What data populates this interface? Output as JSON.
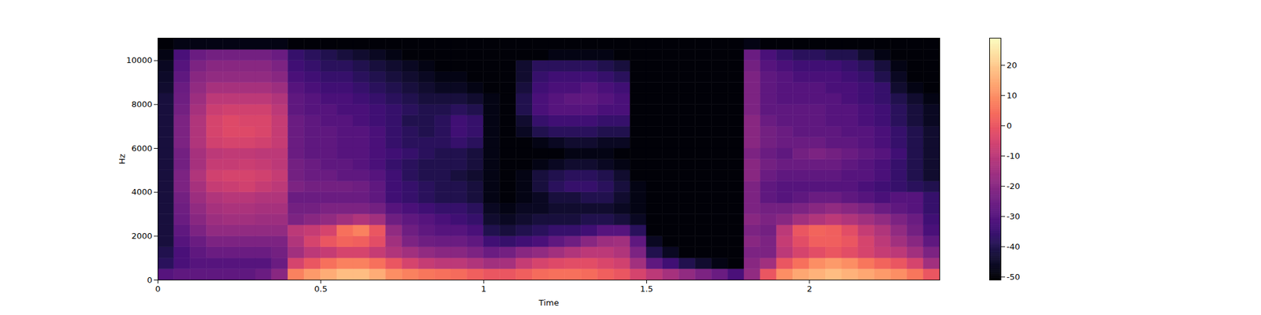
{
  "chart_data": {
    "type": "heatmap",
    "x_label": "Time",
    "y_label": "Hz",
    "xlim": [
      0,
      2.4
    ],
    "xticks": [
      0,
      0.5,
      1,
      1.5,
      2
    ],
    "ylim": [
      0,
      11025
    ],
    "yticks": [
      0,
      2000,
      4000,
      6000,
      8000,
      10000
    ],
    "time_edges": [
      0,
      0.05,
      0.1,
      0.15,
      0.2,
      0.25,
      0.3,
      0.35,
      0.4,
      0.45,
      0.5,
      0.55,
      0.6,
      0.65,
      0.7,
      0.75,
      0.8,
      0.85,
      0.9,
      0.95,
      1,
      1.05,
      1.1,
      1.15,
      1.2,
      1.25,
      1.3,
      1.35,
      1.4,
      1.45,
      1.5,
      1.55,
      1.6,
      1.65,
      1.7,
      1.75,
      1.8,
      1.85,
      1.9,
      1.95,
      2,
      2.05,
      2.1,
      2.15,
      2.2,
      2.25,
      2.3,
      2.35,
      2.4
    ],
    "freq_edges": [
      0,
      500,
      1000,
      1500,
      2000,
      2500,
      3000,
      3500,
      4000,
      4500,
      5000,
      5500,
      6000,
      6500,
      7000,
      7500,
      8000,
      8500,
      9000,
      9500,
      10000,
      10500,
      11025
    ],
    "cells": [
      [
        -30,
        -38,
        -40,
        -42,
        -42,
        -42,
        -42,
        -42,
        -42,
        -42,
        -42,
        -42,
        -42,
        -42,
        -42,
        -42,
        -42,
        -44,
        -45,
        -46,
        -48,
        -50
      ],
      [
        -28,
        -32,
        -32,
        -30,
        -28,
        -26,
        -25,
        -24,
        -22,
        -22,
        -24,
        -24,
        -22,
        -22,
        -22,
        -24,
        -25,
        -26,
        -28,
        -30,
        -32,
        -48
      ],
      [
        -28,
        -30,
        -28,
        -26,
        -22,
        -20,
        -18,
        -16,
        -14,
        -12,
        -14,
        -14,
        -12,
        -12,
        -12,
        -14,
        -16,
        -18,
        -20,
        -22,
        -26,
        -48
      ],
      [
        -28,
        -30,
        -26,
        -22,
        -18,
        -16,
        -14,
        -12,
        -8,
        -6,
        -8,
        -10,
        -6,
        -5,
        -5,
        -7,
        -10,
        -14,
        -18,
        -20,
        -24,
        -48
      ],
      [
        -28,
        -30,
        -26,
        -22,
        -18,
        -15,
        -13,
        -11,
        -7,
        -5,
        -8,
        -9,
        -5,
        -3,
        -3,
        -6,
        -10,
        -14,
        -18,
        -20,
        -24,
        -48
      ],
      [
        -28,
        -30,
        -26,
        -22,
        -18,
        -15,
        -13,
        -11,
        -6,
        -5,
        -7,
        -9,
        -5,
        -3,
        -4,
        -6,
        -10,
        -14,
        -18,
        -20,
        -24,
        -48
      ],
      [
        -26,
        -30,
        -26,
        -22,
        -18,
        -16,
        -14,
        -12,
        -8,
        -6,
        -8,
        -10,
        -6,
        -4,
        -4,
        -6,
        -10,
        -14,
        -18,
        -20,
        -24,
        -48
      ],
      [
        -20,
        -26,
        -24,
        -22,
        -18,
        -16,
        -14,
        -12,
        -10,
        -8,
        -10,
        -10,
        -8,
        -8,
        -8,
        -10,
        -12,
        -16,
        -20,
        -22,
        -26,
        -48
      ],
      [
        8,
        -5,
        -15,
        -12,
        -10,
        -22,
        -24,
        -26,
        -22,
        -24,
        -24,
        -26,
        -26,
        -26,
        -26,
        -28,
        -28,
        -30,
        -32,
        -34,
        -36,
        -50
      ],
      [
        12,
        0,
        -10,
        -5,
        -8,
        -20,
        -24,
        -26,
        -24,
        -26,
        -26,
        -28,
        -28,
        -28,
        -28,
        -30,
        -30,
        -32,
        -34,
        -36,
        -38,
        -50
      ],
      [
        15,
        5,
        -8,
        0,
        -5,
        -18,
        -22,
        -26,
        -24,
        -26,
        -28,
        -28,
        -28,
        -28,
        -30,
        -30,
        -32,
        -34,
        -36,
        -38,
        -40,
        -50
      ],
      [
        18,
        8,
        -5,
        3,
        5,
        -15,
        -22,
        -26,
        -24,
        -28,
        -28,
        -30,
        -30,
        -30,
        -30,
        -32,
        -32,
        -34,
        -36,
        -38,
        -42,
        -50
      ],
      [
        18,
        8,
        -5,
        2,
        8,
        -12,
        -22,
        -26,
        -25,
        -28,
        -30,
        -30,
        -30,
        -30,
        -32,
        -32,
        -34,
        -36,
        -38,
        -40,
        -44,
        -50
      ],
      [
        15,
        5,
        -8,
        -2,
        0,
        -15,
        -24,
        -28,
        -28,
        -30,
        -32,
        -32,
        -32,
        -32,
        -34,
        -34,
        -36,
        -38,
        -40,
        -42,
        -46,
        -50
      ],
      [
        10,
        0,
        -12,
        -15,
        -18,
        -25,
        -30,
        -34,
        -34,
        -34,
        -36,
        -34,
        -36,
        -36,
        -36,
        -36,
        -38,
        -40,
        -42,
        -44,
        -48,
        -50
      ],
      [
        8,
        -5,
        -15,
        -22,
        -25,
        -28,
        -32,
        -36,
        -36,
        -38,
        -38,
        -36,
        -38,
        -38,
        -40,
        -38,
        -40,
        -42,
        -44,
        -46,
        -50,
        -50
      ],
      [
        6,
        -8,
        -18,
        -25,
        -28,
        -30,
        -34,
        -38,
        -38,
        -40,
        -40,
        -38,
        -38,
        -40,
        -40,
        -40,
        -42,
        -44,
        -46,
        -48,
        -50,
        -50
      ],
      [
        5,
        -10,
        -20,
        -26,
        -30,
        -32,
        -36,
        -40,
        -40,
        -40,
        -40,
        -40,
        -38,
        -38,
        -38,
        -40,
        -42,
        -46,
        -48,
        -50,
        -50,
        -50
      ],
      [
        4,
        -10,
        -20,
        -26,
        -30,
        -34,
        -36,
        -40,
        -40,
        -42,
        -40,
        -40,
        -36,
        -34,
        -34,
        -38,
        -42,
        -46,
        -48,
        -50,
        -50,
        -50
      ],
      [
        2,
        -12,
        -22,
        -28,
        -32,
        -36,
        -38,
        -42,
        -42,
        -44,
        -42,
        -42,
        -38,
        -36,
        -36,
        -40,
        -44,
        -48,
        -50,
        -50,
        -50,
        -50
      ],
      [
        0,
        -15,
        -26,
        -34,
        -40,
        -44,
        -46,
        -48,
        -48,
        -48,
        -48,
        -48,
        -48,
        -48,
        -48,
        -48,
        -48,
        -50,
        -50,
        -50,
        -50,
        -50
      ],
      [
        0,
        -14,
        -24,
        -36,
        -42,
        -46,
        -48,
        -50,
        -50,
        -50,
        -50,
        -50,
        -50,
        -50,
        -50,
        -50,
        -50,
        -50,
        -50,
        -50,
        -50,
        -50
      ],
      [
        2,
        -8,
        -20,
        -34,
        -40,
        -44,
        -46,
        -48,
        -48,
        -48,
        -50,
        -50,
        -50,
        -46,
        -44,
        -40,
        -40,
        -42,
        -44,
        -44,
        -50,
        -50
      ],
      [
        4,
        -5,
        -18,
        -32,
        -38,
        -42,
        -46,
        -46,
        -42,
        -42,
        -48,
        -50,
        -48,
        -40,
        -36,
        -32,
        -32,
        -34,
        -36,
        -38,
        -50,
        -50
      ],
      [
        5,
        -3,
        -15,
        -28,
        -36,
        -42,
        -44,
        -42,
        -38,
        -40,
        -46,
        -50,
        -46,
        -38,
        -34,
        -30,
        -30,
        -32,
        -34,
        -38,
        -48,
        -50
      ],
      [
        5,
        -2,
        -12,
        -25,
        -36,
        -42,
        -44,
        -42,
        -36,
        -38,
        -44,
        -48,
        -44,
        -38,
        -34,
        -30,
        -28,
        -32,
        -34,
        -38,
        -48,
        -50
      ],
      [
        4,
        -2,
        -10,
        -20,
        -34,
        -40,
        -44,
        -40,
        -36,
        -38,
        -44,
        -48,
        -44,
        -38,
        -34,
        -30,
        -28,
        -30,
        -34,
        -38,
        -48,
        -50
      ],
      [
        2,
        -4,
        -10,
        -16,
        -30,
        -40,
        -44,
        -40,
        -38,
        -40,
        -46,
        -48,
        -46,
        -40,
        -36,
        -32,
        -30,
        -32,
        -36,
        -40,
        -48,
        -50
      ],
      [
        0,
        -6,
        -12,
        -15,
        -30,
        -42,
        -46,
        -44,
        -42,
        -44,
        -48,
        -50,
        -46,
        -40,
        -36,
        -32,
        -32,
        -34,
        -38,
        -42,
        -50,
        -50
      ],
      [
        -5,
        -15,
        -22,
        -28,
        -38,
        -46,
        -48,
        -48,
        -48,
        -50,
        -50,
        -50,
        -50,
        -50,
        -50,
        -50,
        -50,
        -50,
        -50,
        -50,
        -50,
        -50
      ],
      [
        -10,
        -28,
        -40,
        -46,
        -50,
        -50,
        -50,
        -50,
        -50,
        -50,
        -50,
        -50,
        -50,
        -50,
        -50,
        -50,
        -50,
        -50,
        -50,
        -50,
        -50,
        -50
      ],
      [
        -14,
        -34,
        -46,
        -50,
        -50,
        -50,
        -50,
        -50,
        -50,
        -50,
        -50,
        -50,
        -50,
        -50,
        -50,
        -50,
        -50,
        -50,
        -50,
        -50,
        -50,
        -50
      ],
      [
        -18,
        -40,
        -50,
        -50,
        -50,
        -50,
        -50,
        -50,
        -50,
        -50,
        -50,
        -50,
        -50,
        -50,
        -50,
        -50,
        -50,
        -50,
        -50,
        -50,
        -50,
        -50
      ],
      [
        -22,
        -44,
        -50,
        -50,
        -50,
        -50,
        -50,
        -50,
        -50,
        -50,
        -50,
        -50,
        -50,
        -50,
        -50,
        -50,
        -50,
        -50,
        -50,
        -50,
        -50,
        -50
      ],
      [
        -26,
        -48,
        -50,
        -50,
        -50,
        -50,
        -50,
        -50,
        -50,
        -50,
        -50,
        -50,
        -50,
        -50,
        -50,
        -50,
        -50,
        -50,
        -50,
        -50,
        -50,
        -50
      ],
      [
        -32,
        -50,
        -50,
        -50,
        -50,
        -50,
        -50,
        -50,
        -50,
        -50,
        -50,
        -50,
        -50,
        -50,
        -50,
        -50,
        -50,
        -50,
        -50,
        -50,
        -50,
        -50
      ],
      [
        -18,
        -20,
        -22,
        -20,
        -22,
        -20,
        -22,
        -22,
        -22,
        -20,
        -20,
        -22,
        -20,
        -20,
        -20,
        -22,
        -22,
        -22,
        -22,
        -24,
        -26,
        -48
      ],
      [
        0,
        -15,
        -22,
        -22,
        -24,
        -22,
        -24,
        -28,
        -28,
        -26,
        -24,
        -26,
        -24,
        -24,
        -26,
        -28,
        -28,
        -28,
        -28,
        -30,
        -32,
        -50
      ],
      [
        10,
        0,
        -10,
        -8,
        -10,
        -20,
        -24,
        -30,
        -30,
        -28,
        -26,
        -28,
        -26,
        -26,
        -28,
        -28,
        -30,
        -30,
        -30,
        -32,
        -36,
        -50
      ],
      [
        14,
        5,
        -5,
        -2,
        0,
        -15,
        -22,
        -28,
        -30,
        -28,
        -26,
        -24,
        -26,
        -28,
        -28,
        -28,
        -30,
        -30,
        -32,
        -34,
        -38,
        -50
      ],
      [
        16,
        10,
        -2,
        2,
        3,
        -12,
        -20,
        -26,
        -30,
        -28,
        -26,
        -22,
        -26,
        -28,
        -28,
        -28,
        -30,
        -30,
        -32,
        -34,
        -38,
        -50
      ],
      [
        18,
        12,
        0,
        2,
        2,
        -10,
        -18,
        -26,
        -30,
        -28,
        -26,
        -24,
        -28,
        -28,
        -30,
        -30,
        -30,
        -32,
        -32,
        -34,
        -40,
        -50
      ],
      [
        16,
        10,
        -2,
        0,
        -2,
        -12,
        -20,
        -28,
        -30,
        -30,
        -28,
        -26,
        -28,
        -30,
        -30,
        -30,
        -32,
        -32,
        -34,
        -36,
        -40,
        -50
      ],
      [
        14,
        6,
        -5,
        -5,
        -8,
        -15,
        -22,
        -30,
        -32,
        -30,
        -30,
        -28,
        -30,
        -30,
        -32,
        -32,
        -34,
        -34,
        -36,
        -38,
        -44,
        -50
      ],
      [
        12,
        3,
        -8,
        -10,
        -12,
        -18,
        -26,
        -32,
        -34,
        -32,
        -32,
        -30,
        -32,
        -32,
        -34,
        -34,
        -36,
        -36,
        -40,
        -42,
        -48,
        -50
      ],
      [
        10,
        0,
        -10,
        -15,
        -18,
        -22,
        -28,
        -30,
        -36,
        -36,
        -36,
        -34,
        -36,
        -36,
        -38,
        -38,
        -40,
        -44,
        -46,
        -48,
        -50,
        -50
      ],
      [
        6,
        -5,
        -15,
        -20,
        -24,
        -26,
        -30,
        -30,
        -38,
        -40,
        -40,
        -40,
        -40,
        -40,
        -42,
        -42,
        -44,
        -48,
        -50,
        -50,
        -50,
        -50
      ],
      [
        0,
        -15,
        -22,
        -28,
        -32,
        -34,
        -36,
        -36,
        -40,
        -44,
        -44,
        -44,
        -44,
        -44,
        -46,
        -46,
        -48,
        -50,
        -50,
        -50,
        -50,
        -50
      ]
    ],
    "colorbar": {
      "range": [
        -51,
        29
      ],
      "ticks": [
        20,
        10,
        0,
        -10,
        -20,
        -30,
        -40,
        -50
      ]
    },
    "color": "magma"
  }
}
